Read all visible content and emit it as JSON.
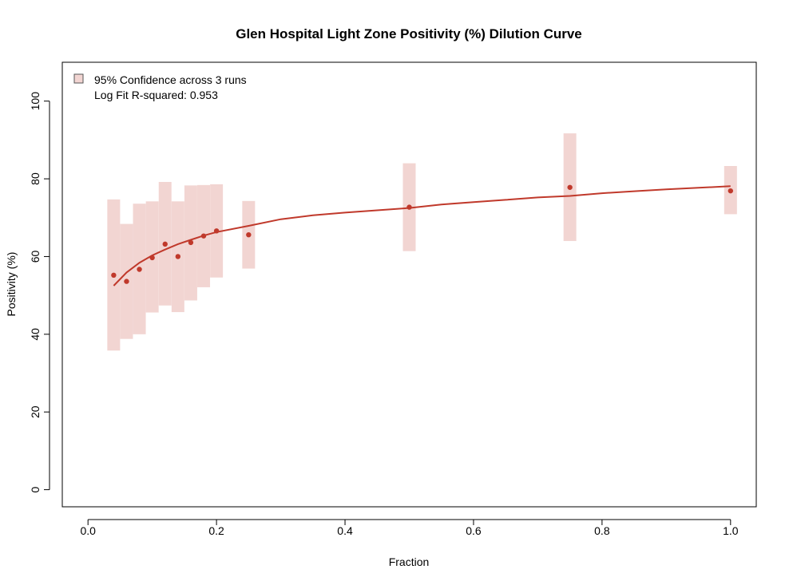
{
  "chart_data": {
    "type": "scatter",
    "title": "Glen Hospital Light Zone Positivity (%) Dilution Curve",
    "xlabel": "Fraction",
    "ylabel": "Positivity (%)",
    "xlim": [
      -0.04,
      1.04
    ],
    "ylim": [
      -4.4,
      110
    ],
    "x_ticks": [
      0.0,
      0.2,
      0.4,
      0.6,
      0.8,
      1.0
    ],
    "x_tick_labels": [
      "0.0",
      "0.2",
      "0.4",
      "0.6",
      "0.8",
      "1.0"
    ],
    "y_ticks": [
      0,
      20,
      40,
      60,
      80,
      100
    ],
    "y_tick_labels": [
      "0",
      "20",
      "40",
      "60",
      "80",
      "100"
    ],
    "grid": false,
    "legend_position": "top-left",
    "legend": {
      "items": [
        {
          "label": "95% Confidence across 3 runs",
          "type": "band"
        },
        {
          "label": "Log Fit R-squared: 0.953",
          "type": "text"
        }
      ]
    },
    "colors": {
      "band": "#f2d5d2",
      "points": "#c0392b",
      "fit": "#c0392b"
    },
    "series": [
      {
        "name": "95% Confidence across 3 runs",
        "kind": "interval",
        "x": [
          0.04,
          0.06,
          0.08,
          0.1,
          0.12,
          0.14,
          0.16,
          0.18,
          0.2,
          0.25,
          0.5,
          0.75,
          1.0
        ],
        "lower": [
          35.8,
          38.8,
          40.0,
          45.6,
          47.4,
          45.7,
          48.7,
          52.1,
          54.6,
          56.9,
          61.4,
          64.0,
          70.9
        ],
        "upper": [
          74.7,
          68.4,
          73.6,
          74.2,
          79.2,
          74.2,
          78.3,
          78.4,
          78.6,
          74.3,
          84.0,
          91.7,
          83.3
        ]
      },
      {
        "name": "",
        "kind": "points",
        "x": [
          0.04,
          0.06,
          0.08,
          0.1,
          0.12,
          0.14,
          0.16,
          0.18,
          0.2,
          0.25,
          0.5,
          0.75,
          1.0
        ],
        "y": [
          55.2,
          53.6,
          56.7,
          59.7,
          63.2,
          60.0,
          63.6,
          65.3,
          66.6,
          65.6,
          72.7,
          77.8,
          76.9
        ]
      },
      {
        "name": "",
        "kind": "fit",
        "model": "log",
        "x": [
          0.04,
          0.06,
          0.08,
          0.1,
          0.12,
          0.14,
          0.16,
          0.18,
          0.2,
          0.25,
          0.3,
          0.35,
          0.4,
          0.45,
          0.5,
          0.55,
          0.6,
          0.65,
          0.7,
          0.75,
          0.8,
          0.85,
          0.9,
          0.95,
          1.0
        ],
        "y": [
          52.5,
          55.9,
          58.4,
          60.3,
          61.8,
          63.2,
          64.3,
          65.4,
          66.3,
          67.9,
          69.6,
          70.6,
          71.3,
          71.9,
          72.5,
          73.4,
          74.0,
          74.6,
          75.2,
          75.6,
          76.3,
          76.8,
          77.3,
          77.7,
          78.1
        ]
      }
    ]
  }
}
